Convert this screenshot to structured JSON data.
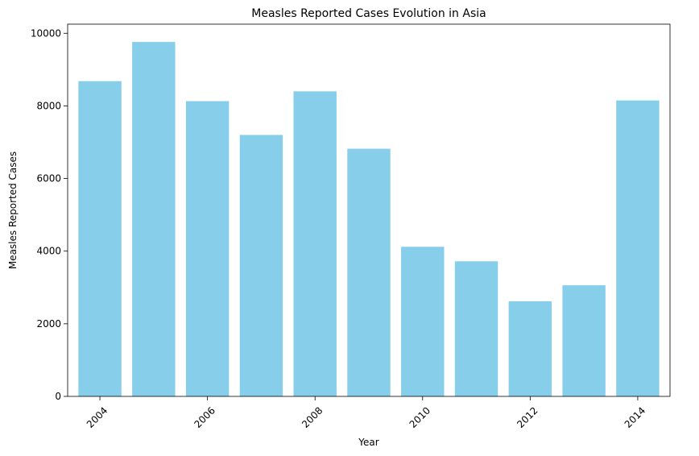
{
  "chart_data": {
    "type": "bar",
    "title": "Measles Reported Cases Evolution in Asia",
    "xlabel": "Year",
    "ylabel": "Measles Reported Cases",
    "x": [
      2004,
      2005,
      2006,
      2007,
      2008,
      2009,
      2010,
      2011,
      2012,
      2013,
      2014
    ],
    "values": [
      8680,
      9760,
      8130,
      7200,
      8400,
      6820,
      4120,
      3720,
      2620,
      3060,
      8150
    ],
    "x_ticks": [
      "2004",
      "2006",
      "2008",
      "2010",
      "2012",
      "2014"
    ],
    "y_ticks": [
      "0",
      "2000",
      "4000",
      "6000",
      "8000",
      "10000"
    ],
    "ylim": [
      0,
      10250
    ],
    "xlim": [
      2003.4,
      2014.6
    ],
    "bar_color": "#87CEEB",
    "grid": false,
    "legend": "none"
  }
}
